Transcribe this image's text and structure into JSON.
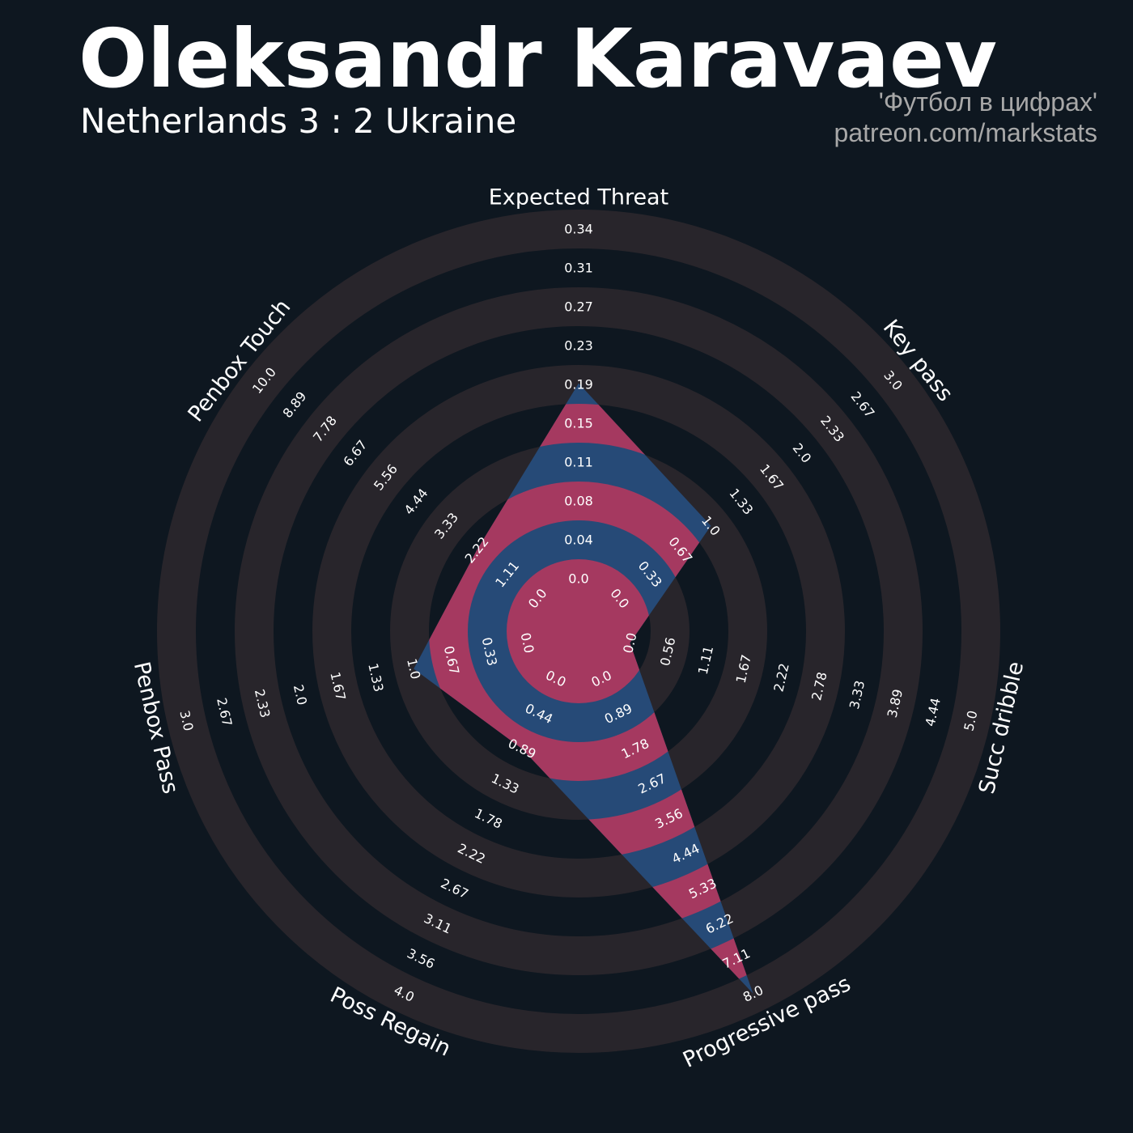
{
  "header": {
    "player_name": "Oleksandr Karavaev",
    "match": "Netherlands 3 : 2 Ukraine",
    "credit_line1": "'Футбол в цифрах'",
    "credit_line2": "patreon.com/markstats"
  },
  "colors": {
    "background": "#0e1720",
    "ring": "#28252b",
    "radar_fill": "#264a77",
    "radar_alt": "#a53960"
  },
  "chart_data": {
    "type": "radar",
    "params": [
      {
        "name": "Expected Threat",
        "value": 0.19,
        "min": 0.0,
        "max": 0.34,
        "ticks": [
          "0.0",
          "0.04",
          "0.08",
          "0.11",
          "0.15",
          "0.19",
          "0.23",
          "0.27",
          "0.31",
          "0.34"
        ]
      },
      {
        "name": "Key pass",
        "value": 1.0,
        "min": 0.0,
        "max": 3.0,
        "ticks": [
          "0.0",
          "0.33",
          "0.67",
          "1.0",
          "1.33",
          "1.67",
          "2.0",
          "2.33",
          "2.67",
          "3.0"
        ]
      },
      {
        "name": "Succ dribble",
        "value": 0.0,
        "min": 0.0,
        "max": 5.0,
        "ticks": [
          "0.0",
          "0.56",
          "1.11",
          "1.67",
          "2.22",
          "2.78",
          "3.33",
          "3.89",
          "4.44",
          "5.0"
        ]
      },
      {
        "name": "Progressive pass",
        "value": 8.0,
        "min": 0.0,
        "max": 8.0,
        "ticks": [
          "0.0",
          "0.89",
          "1.78",
          "2.67",
          "3.56",
          "4.44",
          "5.33",
          "6.22",
          "7.11",
          "8.0"
        ]
      },
      {
        "name": "Poss Regain",
        "value": 0.89,
        "min": 0.0,
        "max": 4.0,
        "ticks": [
          "0.0",
          "0.44",
          "0.89",
          "1.33",
          "1.78",
          "2.22",
          "2.67",
          "3.11",
          "3.56",
          "4.0"
        ]
      },
      {
        "name": "Penbox Pass",
        "value": 1.0,
        "min": 0.0,
        "max": 3.0,
        "ticks": [
          "0.0",
          "0.33",
          "0.67",
          "1.0",
          "1.33",
          "1.67",
          "2.0",
          "2.33",
          "2.67",
          "3.0"
        ]
      },
      {
        "name": "Penbox Touch",
        "value": 2.22,
        "min": 0.0,
        "max": 10.0,
        "ticks": [
          "0.0",
          "1.11",
          "2.22",
          "3.33",
          "4.44",
          "5.56",
          "6.67",
          "7.78",
          "8.89",
          "10.0"
        ]
      }
    ]
  }
}
